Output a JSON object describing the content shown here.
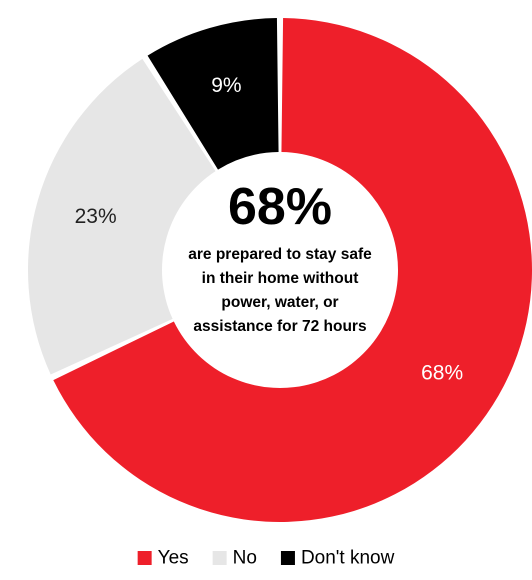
{
  "chart_data": {
    "type": "pie",
    "categories": [
      "Yes",
      "No",
      "Don't know"
    ],
    "values": [
      68,
      23,
      9
    ],
    "value_labels": [
      "68%",
      "23%",
      "9%"
    ],
    "colors": [
      "#ee1f2a",
      "#e6e6e6",
      "#000000"
    ],
    "label_colors": [
      "#ffffff",
      "#222222",
      "#ffffff"
    ],
    "donut": true,
    "legend_position": "bottom-center",
    "center_text": {
      "headline": "68%",
      "lines": [
        "are prepared to stay safe",
        "in their home without",
        "power, water, or",
        "assistance for 72 hours"
      ]
    }
  }
}
